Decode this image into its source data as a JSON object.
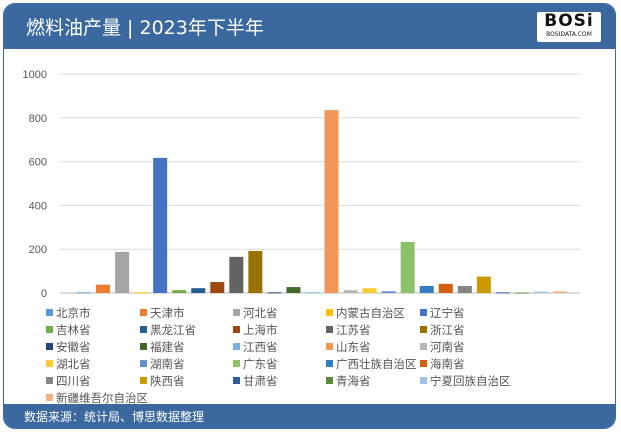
{
  "header": {
    "title": "燃料油产量 | 2023年下半年",
    "logo_text": "BOSi",
    "logo_sub": "BOSIDATA.COM"
  },
  "footer": {
    "source": "数据来源：统计局、博思数据整理"
  },
  "chart_data": {
    "type": "bar",
    "title": "",
    "xlabel": "",
    "ylabel": "",
    "ylim": [
      0,
      1000
    ],
    "yticks": [
      "0",
      "200",
      "400",
      "600",
      "800",
      "1000"
    ],
    "grid": true,
    "legend_position": "bottom",
    "series": [
      {
        "name": "北京市",
        "value": 3,
        "color": "#5B9BD5"
      },
      {
        "name": "天津市",
        "value": 38,
        "color": "#ED7D31"
      },
      {
        "name": "河北省",
        "value": 188,
        "color": "#A5A5A5"
      },
      {
        "name": "内蒙古自治区",
        "value": 3,
        "color": "#FFC000"
      },
      {
        "name": "辽宁省",
        "value": 617,
        "color": "#4472C4"
      },
      {
        "name": "吉林省",
        "value": 13,
        "color": "#70AD47"
      },
      {
        "name": "黑龙江省",
        "value": 22,
        "color": "#255E91"
      },
      {
        "name": "上海市",
        "value": 50,
        "color": "#9E480E"
      },
      {
        "name": "江苏省",
        "value": 165,
        "color": "#636363"
      },
      {
        "name": "浙江省",
        "value": 192,
        "color": "#997300"
      },
      {
        "name": "安徽省",
        "value": 3,
        "color": "#264478"
      },
      {
        "name": "福建省",
        "value": 27,
        "color": "#43682B"
      },
      {
        "name": "江西省",
        "value": 3,
        "color": "#7CAFDD"
      },
      {
        "name": "山东省",
        "value": 835,
        "color": "#F1975A"
      },
      {
        "name": "河南省",
        "value": 13,
        "color": "#B7B7B7"
      },
      {
        "name": "湖北省",
        "value": 22,
        "color": "#FFCD33"
      },
      {
        "name": "湖南省",
        "value": 8,
        "color": "#698ED0"
      },
      {
        "name": "广东省",
        "value": 233,
        "color": "#8CC168"
      },
      {
        "name": "广西壮族自治区",
        "value": 32,
        "color": "#327DC2"
      },
      {
        "name": "海南省",
        "value": 42,
        "color": "#D26012"
      },
      {
        "name": "四川省",
        "value": 32,
        "color": "#848484"
      },
      {
        "name": "陕西省",
        "value": 75,
        "color": "#CC9A00"
      },
      {
        "name": "甘肃省",
        "value": 3,
        "color": "#335AA1"
      },
      {
        "name": "青海省",
        "value": 2,
        "color": "#5A8A39"
      },
      {
        "name": "宁夏回族自治区",
        "value": 6,
        "color": "#9DC3E6"
      },
      {
        "name": "新疆维吾尔自治区",
        "value": 7,
        "color": "#F4B183"
      }
    ]
  }
}
